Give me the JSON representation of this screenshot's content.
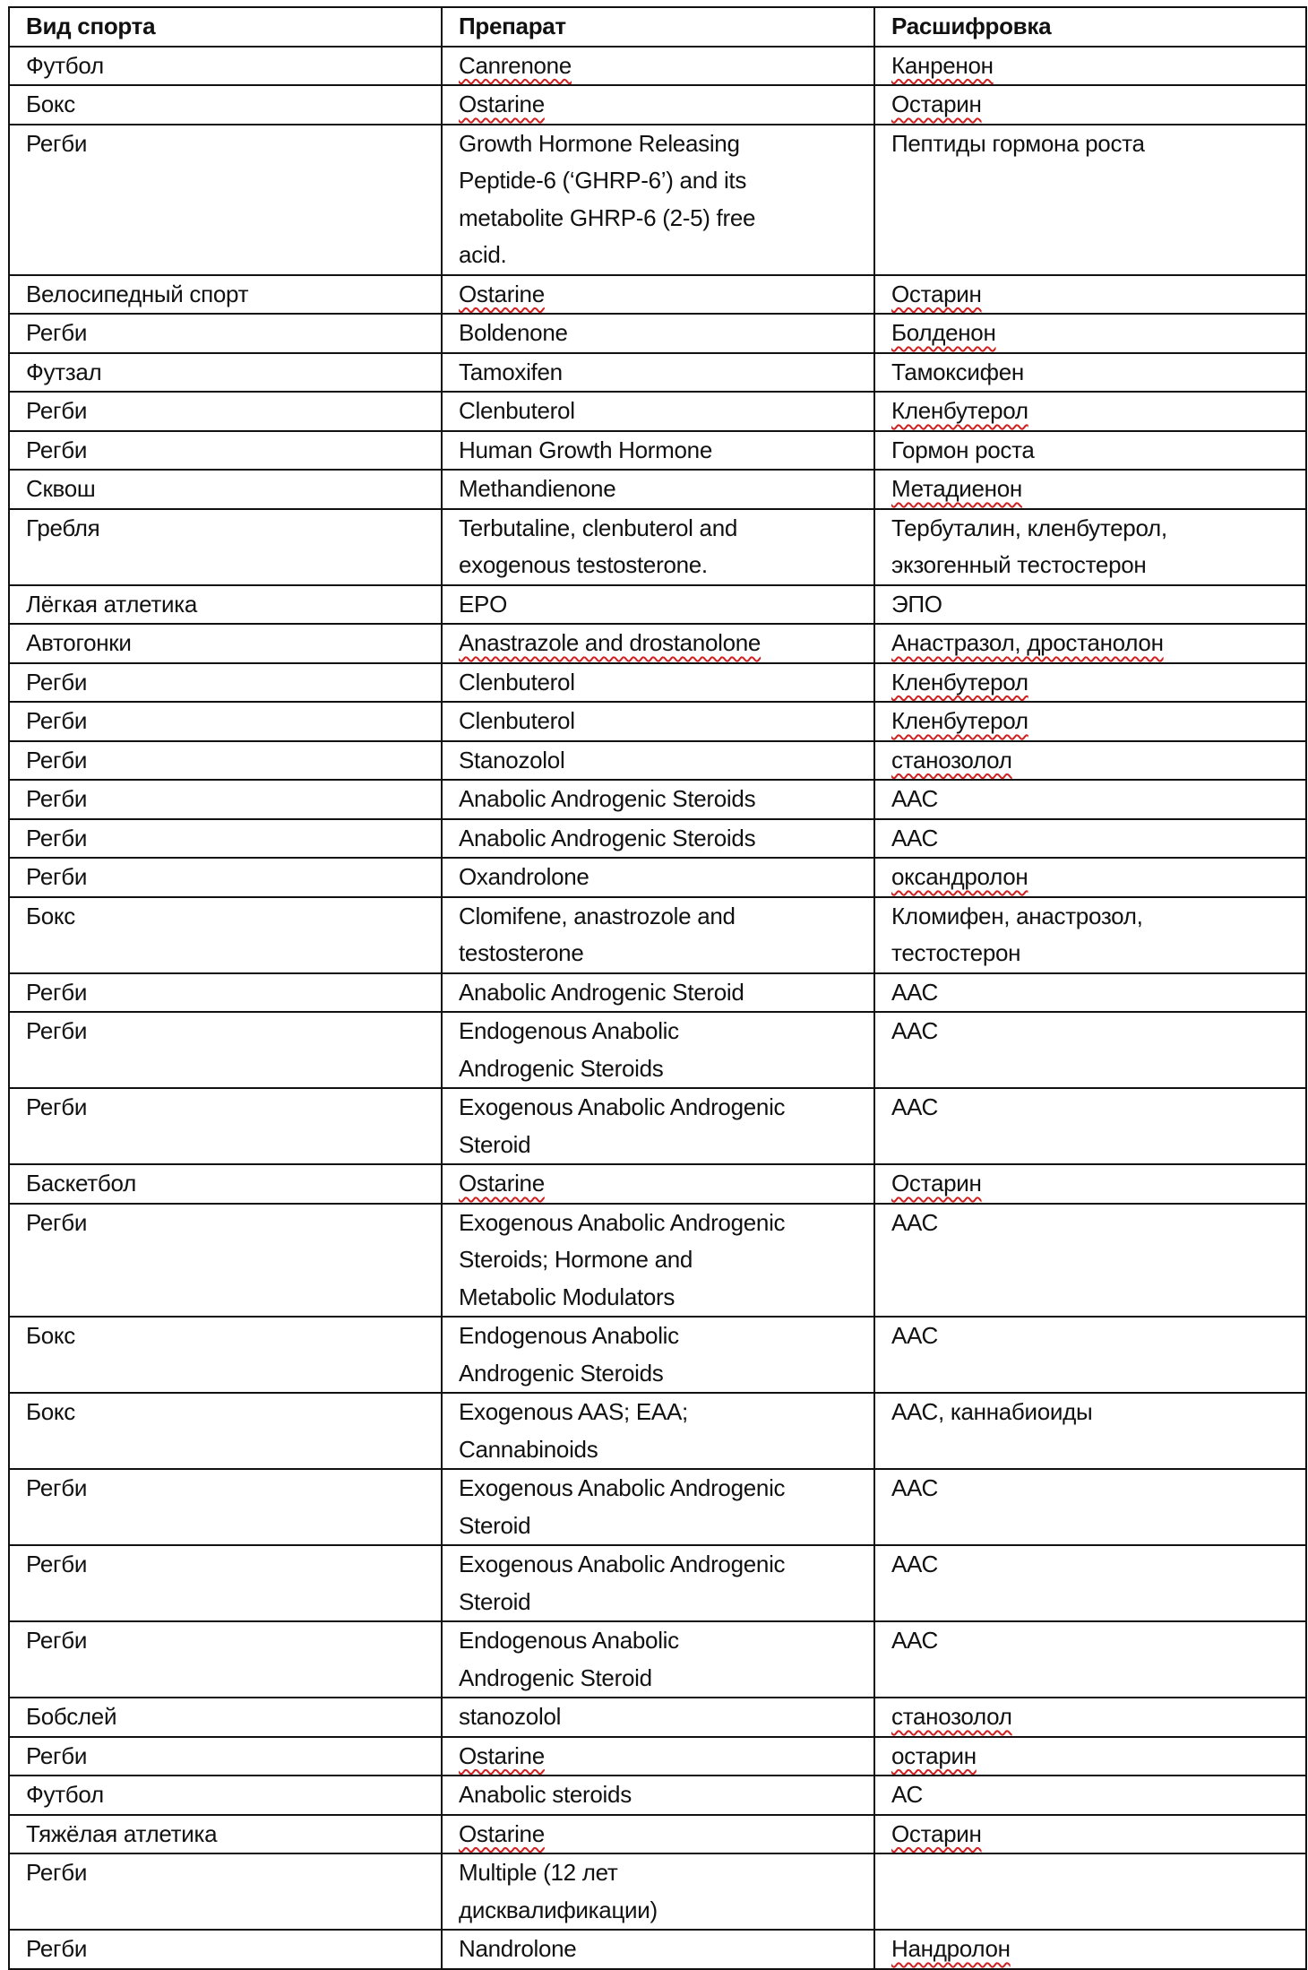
{
  "table": {
    "headers": [
      "Вид спорта",
      "Препарат",
      "Расшифровка"
    ],
    "spellcheck_color": "#d02020",
    "rows": [
      {
        "sport": "Футбол",
        "drug": "Canrenone",
        "decode": "Канренон",
        "sp": [
          0,
          1,
          1
        ]
      },
      {
        "sport": "Бокс",
        "drug": "Ostarine",
        "decode": "Остарин",
        "sp": [
          0,
          1,
          1
        ]
      },
      {
        "sport": "Регби",
        "drug": "Growth Hormone Releasing\nPeptide-6 (‘GHRP-6’) and its\nmetabolite GHRP-6 (2-5) free\nacid.",
        "decode": "Пептиды гормона роста",
        "sp": [
          0,
          0,
          0
        ]
      },
      {
        "sport": "Велосипедный спорт",
        "drug": "Ostarine",
        "decode": "Остарин",
        "sp": [
          0,
          1,
          1
        ]
      },
      {
        "sport": "Регби",
        "drug": "Boldenone",
        "decode": "Болденон",
        "sp": [
          0,
          0,
          1
        ]
      },
      {
        "sport": "Футзал",
        "drug": "Tamoxifen",
        "decode": "Тамоксифен",
        "sp": [
          0,
          0,
          0
        ]
      },
      {
        "sport": "Регби",
        "drug": "Clenbuterol",
        "decode": "Кленбутерол",
        "sp": [
          0,
          0,
          1
        ]
      },
      {
        "sport": "Регби",
        "drug": "Human Growth Hormone",
        "decode": "Гормон роста",
        "sp": [
          0,
          0,
          0
        ]
      },
      {
        "sport": "Сквош",
        "drug": "Methandienone",
        "decode": "Метадиенон",
        "sp": [
          0,
          0,
          1
        ]
      },
      {
        "sport": "Гребля",
        "drug": "Terbutaline, clenbuterol and\nexogenous testosterone.",
        "decode": "Тербуталин, кленбутерол,\nэкзогенный тестостерон",
        "sp": [
          0,
          0,
          0
        ]
      },
      {
        "sport": "Лёгкая атлетика",
        "drug": "EPO",
        "decode": "ЭПО",
        "sp": [
          0,
          0,
          0
        ]
      },
      {
        "sport": "Автогонки",
        "drug": "Anastrazole and drostanolone",
        "decode": "Анастразол, дростанолон",
        "sp": [
          0,
          1,
          1
        ]
      },
      {
        "sport": "Регби",
        "drug": "Clenbuterol",
        "decode": "Кленбутерол",
        "sp": [
          0,
          0,
          1
        ]
      },
      {
        "sport": "Регби",
        "drug": "Clenbuterol",
        "decode": "Кленбутерол",
        "sp": [
          0,
          0,
          1
        ]
      },
      {
        "sport": "Регби",
        "drug": "Stanozolol",
        "decode": "станозолол",
        "sp": [
          0,
          0,
          1
        ]
      },
      {
        "sport": "Регби",
        "drug": "Anabolic Androgenic Steroids",
        "decode": "ААС",
        "sp": [
          0,
          0,
          0
        ]
      },
      {
        "sport": "Регби",
        "drug": "Anabolic Androgenic Steroids",
        "decode": "ААС",
        "sp": [
          0,
          0,
          0
        ]
      },
      {
        "sport": "Регби",
        "drug": "Oxandrolone",
        "decode": "оксандролон",
        "sp": [
          0,
          0,
          1
        ]
      },
      {
        "sport": "Бокс",
        "drug": "Clomifene, anastrozole and\ntestosterone",
        "decode": "Кломифен, анастрозол,\nтестостерон",
        "sp": [
          0,
          0,
          0
        ]
      },
      {
        "sport": "Регби",
        "drug": "Anabolic Androgenic Steroid",
        "decode": "ААС",
        "sp": [
          0,
          0,
          0
        ]
      },
      {
        "sport": "Регби",
        "drug": "Endogenous Anabolic\nAndrogenic Steroids",
        "decode": "ААС",
        "sp": [
          0,
          0,
          0
        ]
      },
      {
        "sport": "Регби",
        "drug": "Exogenous Anabolic Androgenic\nSteroid",
        "decode": "ААС",
        "sp": [
          0,
          0,
          0
        ]
      },
      {
        "sport": "Баскетбол",
        "drug": "Ostarine",
        "decode": "Остарин",
        "sp": [
          0,
          1,
          1
        ]
      },
      {
        "sport": "Регби",
        "drug": "Exogenous Anabolic Androgenic\nSteroids; Hormone and\nMetabolic Modulators",
        "decode": "ААС",
        "sp": [
          0,
          0,
          0
        ]
      },
      {
        "sport": "Бокс",
        "drug": "Endogenous Anabolic\nAndrogenic Steroids",
        "decode": "ААС",
        "sp": [
          0,
          0,
          0
        ]
      },
      {
        "sport": "Бокс",
        "drug": "Exogenous AAS; EAA;\nCannabinoids",
        "decode": "ААС, каннабиоиды",
        "sp": [
          0,
          0,
          0
        ]
      },
      {
        "sport": "Регби",
        "drug": "Exogenous Anabolic Androgenic\nSteroid",
        "decode": "ААС",
        "sp": [
          0,
          0,
          0
        ]
      },
      {
        "sport": "Регби",
        "drug": "Exogenous Anabolic Androgenic\nSteroid",
        "decode": "ААС",
        "sp": [
          0,
          0,
          0
        ]
      },
      {
        "sport": "Регби",
        "drug": "Endogenous Anabolic\nAndrogenic Steroid",
        "decode": "ААС",
        "sp": [
          0,
          0,
          0
        ]
      },
      {
        "sport": "Бобслей",
        "drug": "stanozolol",
        "decode": "станозолол",
        "sp": [
          0,
          0,
          1
        ]
      },
      {
        "sport": "Регби",
        "drug": "Ostarine",
        "decode": "остарин",
        "sp": [
          0,
          1,
          1
        ]
      },
      {
        "sport": "Футбол",
        "drug": "Anabolic steroids",
        "decode": "АС",
        "sp": [
          0,
          0,
          0
        ]
      },
      {
        "sport": "Тяжёлая атлетика",
        "drug": "Ostarine",
        "decode": "Остарин",
        "sp": [
          0,
          1,
          1
        ]
      },
      {
        "sport": "Регби",
        "drug": "Multiple (12 лет\nдисквалификации)",
        "decode": "",
        "sp": [
          0,
          0,
          0
        ]
      },
      {
        "sport": "Регби",
        "drug": "Nandrolone",
        "decode": "Нандролон",
        "sp": [
          0,
          0,
          1
        ]
      }
    ]
  }
}
